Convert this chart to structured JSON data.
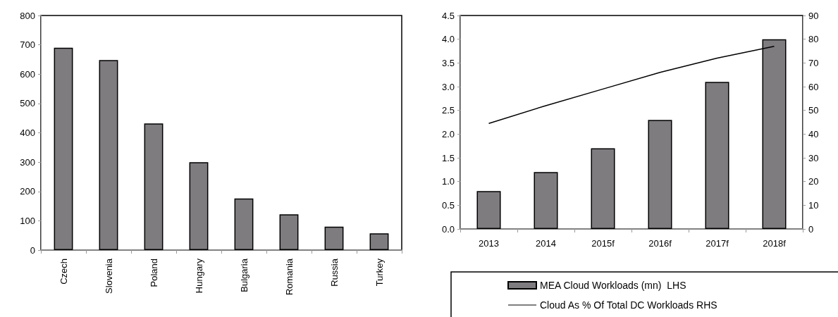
{
  "chart_data": [
    {
      "type": "bar",
      "categories": [
        "Czech",
        "Slovenia",
        "Poland",
        "Hungary",
        "Bulgaria",
        "Romania",
        "Russia",
        "Turkey"
      ],
      "values": [
        690,
        648,
        432,
        300,
        176,
        122,
        80,
        57
      ],
      "color": "#7f7c80",
      "ylim": [
        0,
        800
      ],
      "yticks": [
        0,
        100,
        200,
        300,
        400,
        500,
        600,
        700,
        800
      ],
      "grid": false,
      "legend": false
    },
    {
      "type": "bar",
      "categories": [
        "2013",
        "2014",
        "2015f",
        "2016f",
        "2017f",
        "2018f"
      ],
      "series": [
        {
          "name": "MEA Cloud Workloads (mn)  LHS",
          "color": "#7f7c80",
          "values": [
            0.8,
            1.2,
            1.7,
            2.3,
            3.1,
            4.0
          ]
        },
        {
          "name": "Cloud As % Of Total DC Workloads RHS",
          "type": "line",
          "axis": "y2",
          "color": "#000000",
          "values": [
            44.5,
            52,
            59,
            66,
            72,
            77
          ]
        }
      ],
      "ylim": [
        0,
        4.5
      ],
      "yticks": [
        {
          "value": 0,
          "label": "0.0"
        },
        0.5,
        {
          "value": 1,
          "label": "1.0"
        },
        1.5,
        {
          "value": 2,
          "label": "2.0"
        },
        2.5,
        {
          "value": 3,
          "label": "3.0"
        },
        3.5,
        {
          "value": 4,
          "label": "4.0"
        },
        4.5
      ],
      "y2lim": [
        0,
        90
      ],
      "y2ticks": [
        0,
        10,
        20,
        30,
        40,
        50,
        60,
        70,
        80,
        90
      ],
      "grid": false,
      "legend": "bottom",
      "marker": "none",
      "line_style": "solid"
    }
  ]
}
